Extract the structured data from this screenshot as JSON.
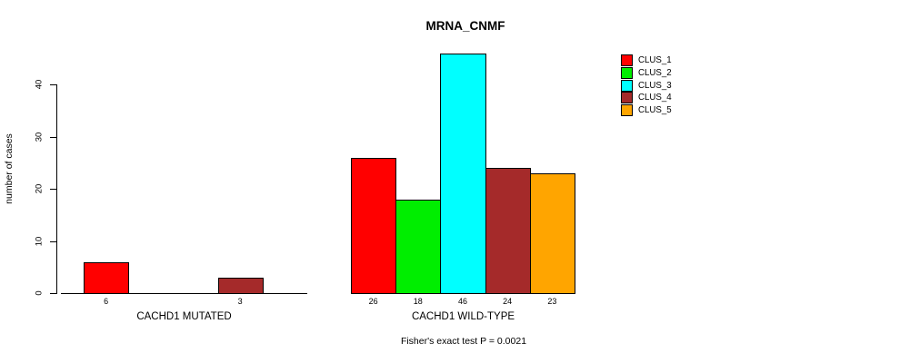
{
  "chart_data": {
    "type": "bar",
    "title": "MRNA_CNMF",
    "xlabel": "",
    "ylabel": "number of cases",
    "ylim": [
      0,
      46
    ],
    "yticks": [
      0,
      10,
      20,
      30,
      40
    ],
    "grid": false,
    "legend_position": "right-outside",
    "series": [
      {
        "name": "CLUS_1",
        "color": "#FF0000"
      },
      {
        "name": "CLUS_2",
        "color": "#00EE00"
      },
      {
        "name": "CLUS_3",
        "color": "#00FFFF"
      },
      {
        "name": "CLUS_4",
        "color": "#A52A2A"
      },
      {
        "name": "CLUS_5",
        "color": "#FFA500"
      }
    ],
    "groups": [
      {
        "label": "CACHD1 MUTATED",
        "values": [
          6,
          0,
          0,
          3,
          0
        ]
      },
      {
        "label": "CACHD1 WILD-TYPE",
        "values": [
          26,
          18,
          46,
          24,
          23
        ]
      }
    ],
    "footnote": "Fisher's exact test P = 0.0021"
  }
}
